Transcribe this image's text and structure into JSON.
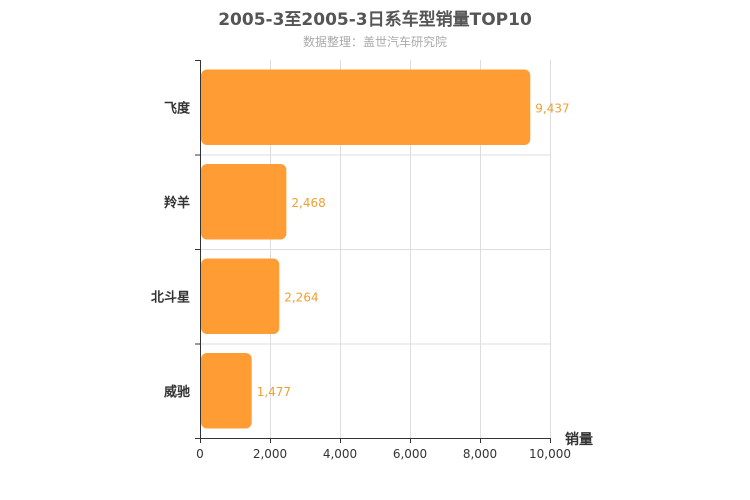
{
  "chart_data": {
    "type": "bar",
    "orientation": "horizontal",
    "title": "2005-3至2005-3日系车型销量TOP10",
    "subtitle": "数据整理：盖世汽车研究院",
    "categories": [
      "飞度",
      "羚羊",
      "北斗星",
      "威驰"
    ],
    "values": [
      9437,
      2468,
      2264,
      1477
    ],
    "value_labels": [
      "9,437",
      "2,468",
      "2,264",
      "1,477"
    ],
    "xlabel": "销量",
    "ylabel": "",
    "xlim": [
      0,
      10000
    ],
    "x_ticks": [
      0,
      2000,
      4000,
      6000,
      8000,
      10000
    ],
    "x_tick_labels": [
      "0",
      "2,000",
      "4,000",
      "6,000",
      "8,000",
      "10,000"
    ],
    "grid": true,
    "colors": {
      "bar": "#ff9c33",
      "label": "#f0a030"
    }
  }
}
